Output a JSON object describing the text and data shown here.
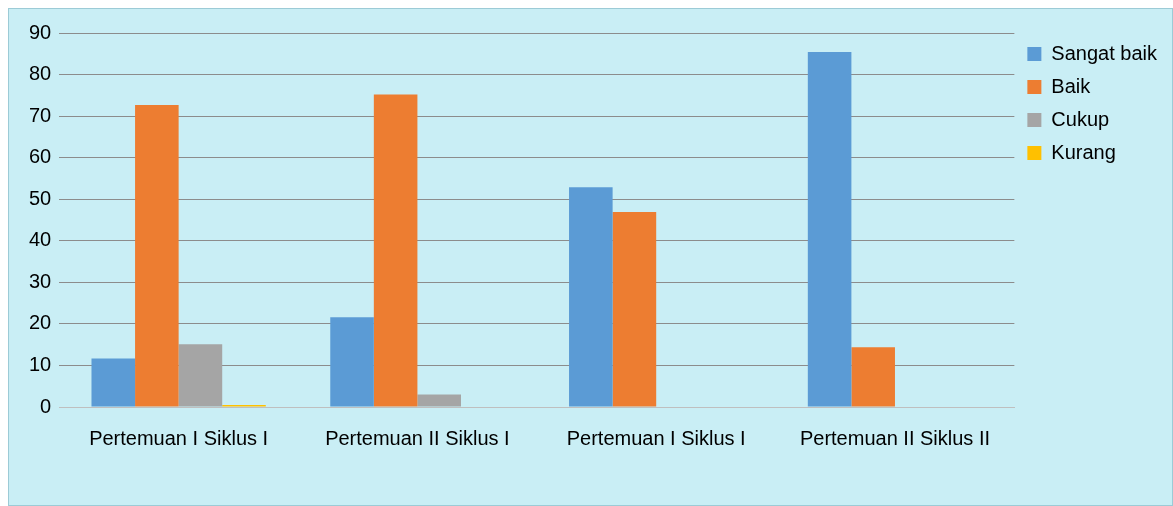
{
  "chart_data": {
    "type": "bar",
    "categories": [
      "Pertemuan I Siklus I",
      "Pertemuan II Siklus I",
      "Pertemuan I Siklus I",
      "Pertemuan II Siklus II"
    ],
    "series": [
      {
        "name": "Sangat baik",
        "color": "#5b9bd5",
        "values": [
          11.7,
          21.6,
          52.9,
          85.4
        ]
      },
      {
        "name": "Baik",
        "color": "#ed7d31",
        "values": [
          72.7,
          75.2,
          46.9,
          14.4
        ]
      },
      {
        "name": "Cukup",
        "color": "#a5a5a5",
        "values": [
          15.1,
          3,
          0,
          0
        ]
      },
      {
        "name": "Kurang",
        "color": "#ffc000",
        "values": [
          0.5,
          0,
          0,
          0
        ]
      }
    ],
    "ylim": [
      0,
      90
    ],
    "yticks": [
      0,
      10,
      20,
      30,
      40,
      50,
      60,
      70,
      80,
      90
    ],
    "grid": "y",
    "legend": "top right"
  }
}
